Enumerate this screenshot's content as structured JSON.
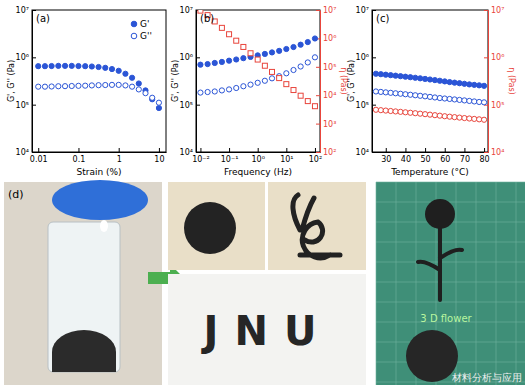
{
  "chart_data": [
    {
      "type": "scatter",
      "title": "(a)",
      "xlabel": "Strain (%)",
      "ylabel": "G', G'' (Pa)",
      "log": true,
      "grid": false,
      "legend": "top-right",
      "xlim": [
        0.007,
        15
      ],
      "xticks": [
        0.01,
        0.1,
        1,
        10
      ],
      "ylim": [
        10000,
        10000000
      ],
      "yticks": [
        {
          "value": 10000,
          "label": "10⁴"
        },
        {
          "value": 100000,
          "label": "10⁵"
        },
        {
          "value": 1000000,
          "label": "10⁶"
        },
        {
          "value": 10000000,
          "label": "10⁷"
        }
      ],
      "x": [
        0.01,
        0.0147,
        0.0215,
        0.0316,
        0.0464,
        0.0681,
        0.1,
        0.147,
        0.215,
        0.316,
        0.464,
        0.681,
        1,
        1.47,
        2.15,
        3.16,
        4.64,
        6.81,
        10
      ],
      "series": [
        {
          "name": "G'",
          "color": "#2b55d6",
          "marker": "circle",
          "values": [
            650000,
            650000,
            655000,
            660000,
            660000,
            660000,
            655000,
            650000,
            640000,
            625000,
            600000,
            565000,
            520000,
            450000,
            370000,
            280000,
            200000,
            130000,
            85000
          ]
        },
        {
          "name": "G''",
          "color": "#2b55d6",
          "marker": "circle-open",
          "values": [
            240000,
            240000,
            242000,
            245000,
            246000,
            248000,
            250000,
            252000,
            255000,
            258000,
            260000,
            262000,
            262000,
            255000,
            240000,
            210000,
            175000,
            140000,
            110000
          ]
        }
      ]
    },
    {
      "type": "scatter",
      "title": "(b)",
      "xlabel": "Frequency (Hz)",
      "ylabel": "G', G'' (Pa)",
      "y2label": "η (Pas)",
      "log": true,
      "grid": false,
      "xlim": [
        0.007,
        150
      ],
      "xticks": [
        {
          "value": 0.01,
          "label": "10⁻²"
        },
        {
          "value": 0.1,
          "label": "10⁻¹"
        },
        {
          "value": 1,
          "label": "10⁰"
        },
        {
          "value": 10,
          "label": "10¹"
        },
        {
          "value": 100,
          "label": "10²"
        }
      ],
      "ylim": [
        10000,
        10000000
      ],
      "yticks": [
        {
          "value": 10000,
          "label": "10⁴"
        },
        {
          "value": 100000,
          "label": "10⁵"
        },
        {
          "value": 1000000,
          "label": "10⁶"
        },
        {
          "value": 10000000,
          "label": "10⁷"
        }
      ],
      "y2lim": [
        100,
        10000000
      ],
      "y2ticks": [
        {
          "value": 100,
          "label": "10²"
        },
        {
          "value": 1000,
          "label": "10³"
        },
        {
          "value": 10000,
          "label": "10⁴"
        },
        {
          "value": 100000,
          "label": "10⁵"
        },
        {
          "value": 1000000,
          "label": "10⁶"
        },
        {
          "value": 10000000,
          "label": "10⁷"
        }
      ],
      "x": [
        0.01,
        0.0178,
        0.0316,
        0.0562,
        0.1,
        0.178,
        0.316,
        0.562,
        1,
        1.78,
        3.16,
        5.62,
        10,
        17.8,
        31.6,
        56.2,
        100
      ],
      "series": [
        {
          "color": "#2b55d6",
          "marker": "circle",
          "values": [
            700000,
            720000,
            760000,
            800000,
            850000,
            900000,
            960000,
            1020000,
            1100000,
            1180000,
            1270000,
            1370000,
            1500000,
            1650000,
            1850000,
            2100000,
            2500000
          ]
        },
        {
          "color": "#2b55d6",
          "marker": "circle-open",
          "values": [
            180000,
            185000,
            190000,
            200000,
            210000,
            225000,
            245000,
            265000,
            290000,
            320000,
            360000,
            400000,
            460000,
            540000,
            640000,
            780000,
            1000000
          ]
        },
        {
          "color": "#e8453c",
          "marker": "square-open",
          "axis": "y2",
          "values": [
            9500000,
            6600000,
            3950000,
            2350000,
            1400000,
            830000,
            500000,
            300000,
            180000,
            109000,
            66000,
            40000,
            24500,
            15200,
            9600,
            6200,
            4100
          ]
        }
      ]
    },
    {
      "type": "scatter",
      "title": "(c)",
      "xlabel": "Temperature (°C)",
      "ylabel": "G', G'' (Pa)",
      "y2label": "η (Pas)",
      "log": "y",
      "grid": false,
      "xlim": [
        23,
        82
      ],
      "xticks": [
        30,
        40,
        50,
        60,
        70,
        80
      ],
      "ylim": [
        10000,
        10000000
      ],
      "yticks": [
        {
          "value": 10000,
          "label": "10⁴"
        },
        {
          "value": 100000,
          "label": "10⁵"
        },
        {
          "value": 1000000,
          "label": "10⁶"
        },
        {
          "value": 10000000,
          "label": "10⁷"
        }
      ],
      "y2lim": [
        10000,
        10000000
      ],
      "y2ticks": [
        {
          "value": 10000,
          "label": "10⁴"
        },
        {
          "value": 100000,
          "label": "10⁵"
        },
        {
          "value": 1000000,
          "label": "10⁶"
        },
        {
          "value": 10000000,
          "label": "10⁷"
        }
      ],
      "x": [
        25,
        27.5,
        30,
        32.5,
        35,
        37.5,
        40,
        42.5,
        45,
        47.5,
        50,
        52.5,
        55,
        57.5,
        60,
        62.5,
        65,
        67.5,
        70,
        72.5,
        75,
        77.5,
        80
      ],
      "series": [
        {
          "color": "#2b55d6",
          "marker": "circle",
          "values": [
            450000,
            440000,
            430000,
            420000,
            410000,
            400000,
            390000,
            380000,
            370000,
            360000,
            350000,
            340000,
            330000,
            320000,
            310000,
            300000,
            292000,
            284000,
            276000,
            268000,
            262000,
            256000,
            250000
          ]
        },
        {
          "color": "#2b55d6",
          "marker": "circle-open",
          "values": [
            190000,
            186000,
            182000,
            178000,
            174000,
            170000,
            166000,
            162000,
            158000,
            154000,
            150000,
            146000,
            142000,
            138000,
            135000,
            132000,
            129000,
            126000,
            123000,
            120000,
            117000,
            114000,
            112000
          ]
        },
        {
          "color": "#e8453c",
          "marker": "circle-open",
          "axis": "y2",
          "values": [
            78000,
            76500,
            75000,
            73500,
            72000,
            70500,
            69000,
            67500,
            66000,
            64500,
            63000,
            61500,
            60000,
            58500,
            57000,
            55700,
            54500,
            53300,
            52100,
            51000,
            50000,
            49000,
            48000
          ]
        }
      ]
    }
  ],
  "photo_panel": {
    "label": "(d)",
    "letters": "JNU",
    "caption": "3 D flower",
    "watermark": "材料分析与应用"
  }
}
